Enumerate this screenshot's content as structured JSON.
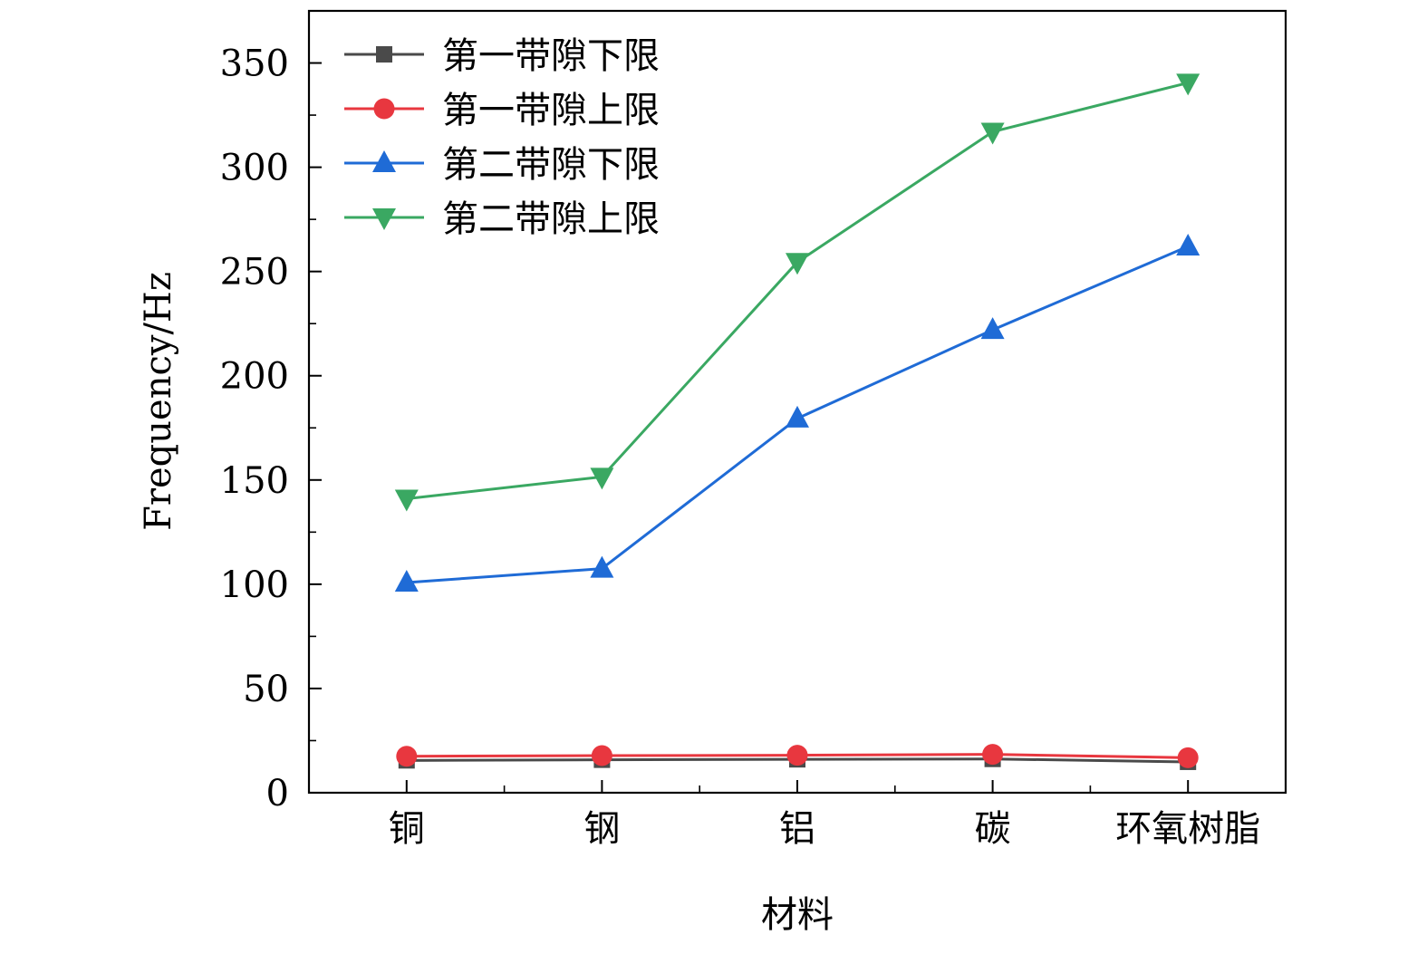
{
  "chart_data": {
    "type": "line",
    "categories": [
      "铜",
      "钢",
      "铝",
      "碳",
      "环氧树脂"
    ],
    "xlabel": "材料",
    "ylabel": "Frequency/Hz",
    "ylim": [
      0,
      375
    ],
    "yticks": [
      0,
      50,
      100,
      150,
      200,
      250,
      300,
      350
    ],
    "grid": false,
    "legend_position": "top-left",
    "series": [
      {
        "name": "第一带隙下限",
        "marker": "square",
        "color": "#4a4a4a",
        "values": [
          15.5,
          15.8,
          16.0,
          16.2,
          14.8
        ]
      },
      {
        "name": "第一带隙上限",
        "marker": "circle",
        "color": "#e8373f",
        "values": [
          17.5,
          17.8,
          18.0,
          18.4,
          16.8
        ]
      },
      {
        "name": "第二带隙下限",
        "marker": "triangle-up",
        "color": "#1f6bd6",
        "values": [
          100.8,
          107.5,
          179.5,
          222.0,
          262.0
        ]
      },
      {
        "name": "第二带隙上限",
        "marker": "triangle-down",
        "color": "#3aa862",
        "values": [
          141.0,
          151.5,
          254.5,
          317.0,
          340.5
        ]
      }
    ]
  }
}
